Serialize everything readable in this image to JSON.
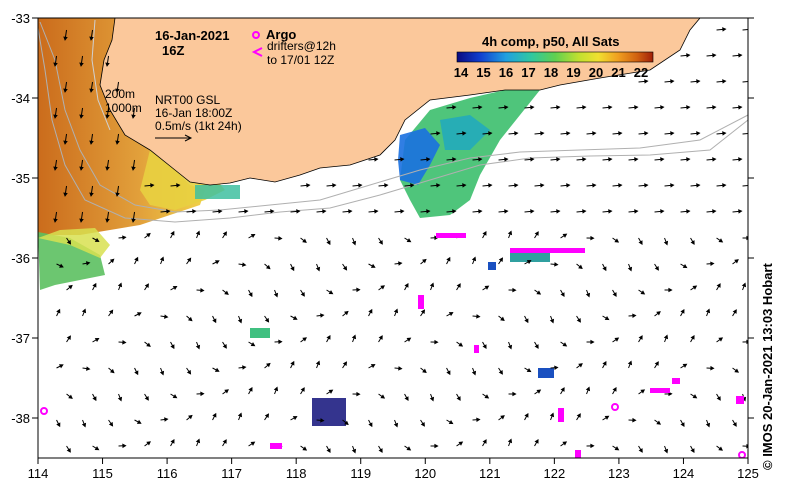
{
  "map": {
    "date": "16-Jan-2021",
    "hour": "16Z",
    "argo_label": "Argo",
    "drifter_label": "drifters@12h",
    "drifter_label2": "to 17/01 12Z",
    "contour_label_1": "200m",
    "contour_label_2": "1000m",
    "current_source": "NRT00 GSL",
    "current_time": "16-Jan 18:00Z",
    "scale_label": "0.5m/s (1kt 24h)",
    "colorbar_title": "4h comp, p50, All Sats",
    "colorbar_ticks": [
      "14",
      "15",
      "16",
      "17",
      "18",
      "19",
      "20",
      "21",
      "22"
    ],
    "credit": "© IMOS 20-Jan-2021 13:03 Hobart",
    "x_ticks": [
      "114",
      "115",
      "116",
      "117",
      "118",
      "119",
      "120",
      "121",
      "122",
      "123",
      "124",
      "125"
    ],
    "y_ticks": [
      "-33",
      "-34",
      "-35",
      "-36",
      "-37",
      "-38"
    ],
    "colors": {
      "land": "#fbc89b",
      "argo": "#ff00ff",
      "drifter": "#ff00ff"
    }
  }
}
